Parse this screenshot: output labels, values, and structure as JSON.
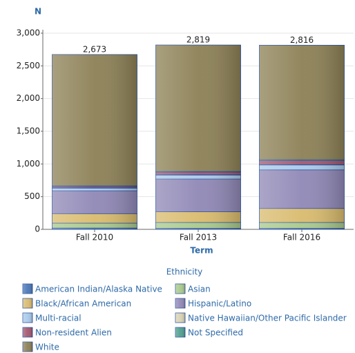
{
  "chart_data": {
    "type": "stacked_bar",
    "y_label": "N",
    "x_label": "Term",
    "legend_title": "Ethnicity",
    "categories": [
      "Fall 2010",
      "Fall 2013",
      "Fall 2016"
    ],
    "series": [
      {
        "name": "American Indian/Alaska Native",
        "color": "#4a78b8",
        "values": [
          20,
          15,
          15
        ]
      },
      {
        "name": "Asian",
        "color": "#a8c98c",
        "values": [
          75,
          90,
          90
        ]
      },
      {
        "name": "Black/African American",
        "color": "#d9bb6e",
        "values": [
          145,
          165,
          215
        ]
      },
      {
        "name": "Hispanic/Latino",
        "color": "#9088b6",
        "values": [
          350,
          500,
          590
        ]
      },
      {
        "name": "Multi-racial",
        "color": "#a9c9ea",
        "values": [
          40,
          60,
          75
        ]
      },
      {
        "name": "Native Hawaiian/Other Pacific Islander",
        "color": "#d8d2b4",
        "values": [
          5,
          5,
          5
        ]
      },
      {
        "name": "Non-resident Alien",
        "color": "#a4566f",
        "values": [
          20,
          40,
          60
        ]
      },
      {
        "name": "Not Specified",
        "color": "#4f9e8f",
        "values": [
          10,
          10,
          15
        ]
      },
      {
        "name": "White",
        "color": "#8c8055",
        "values": [
          2008,
          1934,
          1751
        ]
      }
    ],
    "totals": {
      "values": [
        2673,
        2819,
        2816
      ],
      "value_labels": [
        "2,673",
        "2,819",
        "2,816"
      ]
    },
    "ylim": [
      0,
      3000
    ],
    "yticks": [
      0,
      500,
      {
        "value": 1000,
        "label": "1,000"
      },
      {
        "value": 1500,
        "label": "1,500"
      },
      {
        "value": 2000,
        "label": "2,000"
      },
      {
        "value": 2500,
        "label": "2,500"
      },
      {
        "value": 3000,
        "label": "3,000"
      }
    ],
    "grid": true
  }
}
